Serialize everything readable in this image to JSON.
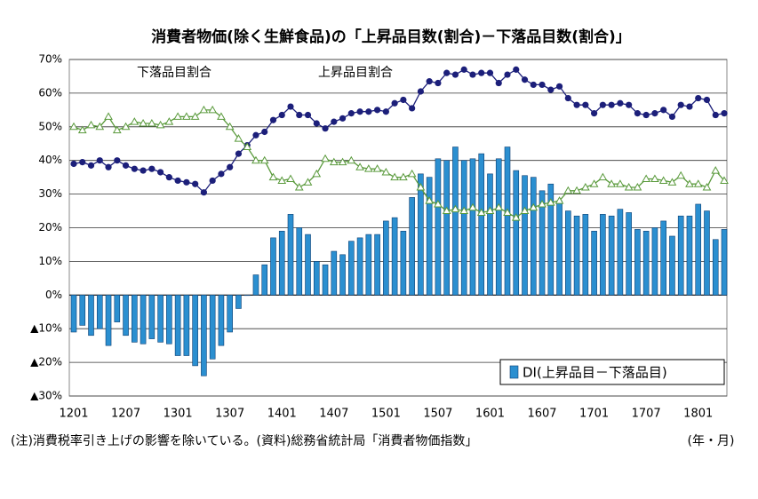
{
  "chart_data": {
    "type": "bar_line",
    "title": "消費者物価(除く生鮮食品)の「上昇品目数(割合)－下落品目数(割合)」",
    "footnote": "(注)消費税率引き上げの影響を除いている。(資料)総務省統計局「消費者物価指数」",
    "x_label": "(年・月)",
    "categories": [
      "1201",
      null,
      null,
      null,
      null,
      null,
      "1207",
      null,
      null,
      null,
      null,
      null,
      "1301",
      null,
      null,
      null,
      null,
      null,
      "1307",
      null,
      null,
      null,
      null,
      null,
      "1401",
      null,
      null,
      null,
      null,
      null,
      "1407",
      null,
      null,
      null,
      null,
      null,
      "1501",
      null,
      null,
      null,
      null,
      null,
      "1507",
      null,
      null,
      null,
      null,
      null,
      "1601",
      null,
      null,
      null,
      null,
      null,
      "1607",
      null,
      null,
      null,
      null,
      null,
      "1701",
      null,
      null,
      null,
      null,
      null,
      "1707",
      null,
      null,
      null,
      null,
      null,
      "1801",
      null,
      null,
      null
    ],
    "series": [
      {
        "name": "DI(上昇品目－下落品目)",
        "type": "bar",
        "color": "#2b8fd0",
        "values": [
          -11,
          -9,
          -12,
          -10,
          -15,
          -8,
          -12,
          -14,
          -14.5,
          -13,
          -14,
          -14.5,
          -18,
          -18,
          -21,
          -24,
          -19,
          -15,
          -11,
          -4,
          0,
          6,
          9,
          17,
          19,
          24,
          20,
          18,
          10,
          9,
          13,
          12,
          16,
          17,
          18,
          18,
          22,
          23,
          19,
          29,
          36,
          35,
          40.5,
          40,
          44,
          40,
          40.5,
          42,
          36,
          40.5,
          44,
          37,
          35.5,
          35,
          31,
          33,
          28,
          25,
          23.5,
          24,
          19,
          24,
          23.5,
          25.5,
          24.5,
          19.5,
          19,
          20,
          22,
          17.5,
          23.5,
          23.5,
          27,
          25,
          16.5,
          19.5
        ]
      },
      {
        "name": "上昇品目割合",
        "type": "line",
        "marker": "circle",
        "color": "#1c1f7a",
        "values": [
          39,
          39.5,
          38.5,
          40,
          38,
          40,
          38.5,
          37.5,
          37,
          37.5,
          36.5,
          35,
          34,
          33.5,
          33,
          30.5,
          34,
          36,
          38,
          42,
          44.5,
          47.5,
          48.5,
          52,
          53.5,
          56,
          53.5,
          53.5,
          51,
          49.5,
          51.5,
          52.5,
          54,
          54.5,
          54.5,
          55,
          54.5,
          57,
          58,
          55.5,
          60.5,
          63.5,
          63,
          66,
          65.5,
          67,
          65.5,
          66,
          66,
          63,
          65.5,
          67,
          64,
          62.5,
          62.5,
          61,
          62,
          58.5,
          56.5,
          56.5,
          54,
          56.5,
          56.5,
          57,
          56.5,
          54,
          53.5,
          54,
          55,
          53,
          56.5,
          56,
          58.5,
          58,
          53.5,
          54
        ]
      },
      {
        "name": "下落品目割合",
        "type": "line",
        "marker": "triangle",
        "color": "#5a9a3c",
        "values": [
          50,
          49,
          50.5,
          50,
          53,
          49,
          50,
          51.5,
          51,
          51,
          50.5,
          51.5,
          53,
          53,
          53,
          55,
          55,
          53,
          50,
          46.5,
          44,
          40,
          40,
          35,
          34,
          34.5,
          32,
          33.5,
          36,
          40.5,
          39.5,
          39.5,
          40,
          38,
          37.5,
          37.5,
          36.5,
          35,
          35,
          36,
          32,
          28,
          27,
          25,
          25.5,
          25,
          26,
          24.5,
          25,
          26,
          24.5,
          23,
          25,
          26,
          27,
          27.5,
          28,
          31,
          31,
          32,
          33,
          35,
          33,
          33,
          32,
          32,
          34.5,
          34.5,
          34,
          33.5,
          35.5,
          33,
          33,
          32,
          37,
          34
        ]
      }
    ],
    "ylim": [
      -30,
      70
    ],
    "yticks": [
      {
        "value": -30,
        "label": "▲30%"
      },
      {
        "value": -20,
        "label": "▲20%"
      },
      {
        "value": -10,
        "label": "▲10%"
      },
      {
        "value": 0,
        "label": "0%"
      },
      {
        "value": 10,
        "label": "10%"
      },
      {
        "value": 20,
        "label": "20%"
      },
      {
        "value": 30,
        "label": "30%"
      },
      {
        "value": 40,
        "label": "40%"
      },
      {
        "value": 50,
        "label": "50%"
      },
      {
        "value": 60,
        "label": "60%"
      },
      {
        "value": 70,
        "label": "70%"
      }
    ],
    "grid": true,
    "legend": "lower right"
  }
}
